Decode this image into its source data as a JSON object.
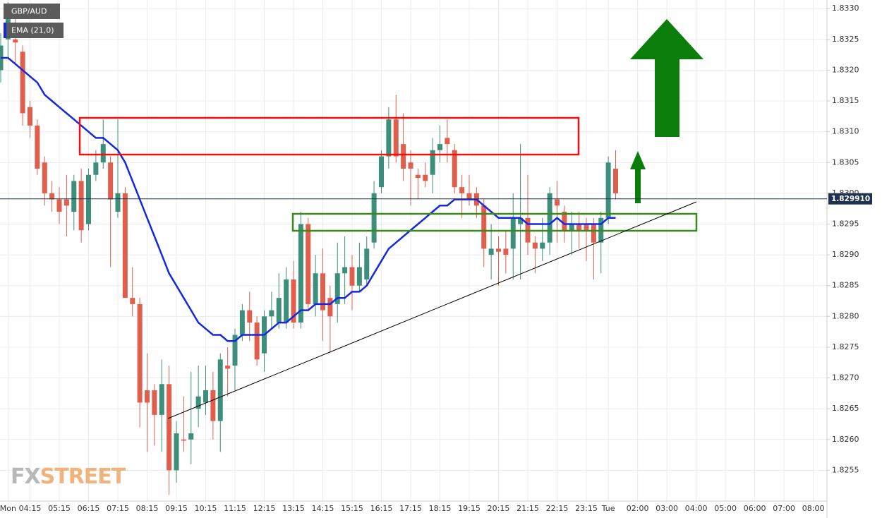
{
  "chart_data": {
    "type": "candlestick",
    "categories": [
      null,
      "Mon",
      null,
      null,
      "04:15",
      null,
      null,
      null,
      "05:15",
      null,
      null,
      null,
      "06:15",
      null,
      null,
      null,
      "07:15",
      null,
      null,
      null,
      "08:15",
      null,
      null,
      null,
      "09:15",
      null,
      null,
      null,
      "10:15",
      null,
      null,
      null,
      "11:15",
      null,
      null,
      null,
      "12:15",
      null,
      null,
      null,
      "13:15",
      null,
      null,
      null,
      "14:15",
      null,
      null,
      null,
      "15:15",
      null,
      null,
      null,
      "16:15",
      null,
      null,
      null,
      "17:15",
      null,
      null,
      null,
      "18:15",
      null,
      null,
      null,
      "19:15",
      null,
      null,
      null,
      "20:15",
      null,
      null,
      null,
      "21:15",
      null,
      null,
      null,
      "22:15",
      null,
      null,
      null,
      "23:15",
      null,
      null,
      "Tue",
      null,
      null,
      null,
      "02:00",
      null,
      null,
      null,
      "03:00",
      null,
      null,
      null,
      "04:00",
      null,
      null,
      null,
      "05:00",
      null,
      null,
      null,
      "06:00",
      null,
      null,
      null,
      "07:00",
      null,
      null,
      null,
      "08:00",
      null
    ],
    "series": [
      {
        "name": "GBP/AUD",
        "up_color": "#3d8f7c",
        "down_color": "#df5f4c",
        "open": [
          1.832,
          1.8325,
          1.8325,
          1.8323,
          1.8314,
          1.8311,
          1.8305,
          1.83,
          1.8299,
          1.8299,
          1.8297,
          1.8302,
          1.8295,
          1.8303,
          1.8305,
          1.8305,
          1.8297,
          1.83,
          1.8283,
          1.8282,
          1.8268,
          1.8268,
          1.8264,
          1.8269,
          1.8255,
          1.826,
          1.826,
          1.8265,
          1.8266,
          1.8268,
          1.8263,
          1.8272,
          1.8272,
          1.8277,
          1.8281,
          1.8279,
          1.8274,
          1.828,
          1.8279,
          1.8279,
          1.8286,
          1.8279,
          1.8295,
          1.8282,
          1.8287,
          1.8283,
          1.8282,
          1.8287,
          1.8288,
          1.8285,
          1.8286,
          1.8292,
          1.8301,
          1.8306,
          1.8312,
          1.8308,
          1.8305,
          1.8303,
          1.8303,
          1.8303,
          1.8307,
          1.8309,
          1.8307,
          1.8301,
          1.83,
          1.83,
          1.8298,
          1.829,
          1.8291,
          1.8291,
          1.8291,
          1.8295,
          1.8296,
          1.8292,
          1.8291,
          1.8292,
          1.8299,
          1.8297,
          1.8294,
          1.8295,
          1.8295,
          1.8295,
          1.8292,
          1.8296,
          1.8304,
          null,
          null,
          null,
          null,
          null,
          null,
          null,
          null,
          null,
          null,
          null,
          null,
          null,
          null,
          null,
          null,
          null,
          null,
          null,
          null,
          null,
          null,
          null,
          null,
          null,
          null,
          null,
          null
        ],
        "high": [
          1.8326,
          1.8331,
          1.8329,
          1.8324,
          1.8315,
          1.8312,
          1.8306,
          1.8302,
          1.8301,
          1.8303,
          1.8303,
          1.8304,
          1.8304,
          1.8307,
          1.8312,
          1.8306,
          1.8312,
          1.8301,
          1.8288,
          1.8283,
          1.8274,
          1.8269,
          1.8273,
          1.8272,
          1.8263,
          1.8267,
          1.8271,
          1.8272,
          1.8272,
          1.8271,
          1.8274,
          1.8275,
          1.8278,
          1.8282,
          1.8284,
          1.828,
          1.8281,
          1.8284,
          1.8287,
          1.8288,
          1.8289,
          1.8297,
          1.8296,
          1.829,
          1.8291,
          1.8285,
          1.8292,
          1.8293,
          1.829,
          1.8292,
          1.8293,
          1.8302,
          1.8307,
          1.8314,
          1.8316,
          1.8313,
          1.8307,
          1.8304,
          1.8305,
          1.8309,
          1.8311,
          1.8312,
          1.8308,
          1.8303,
          1.8303,
          1.8301,
          1.8299,
          1.8295,
          1.8293,
          1.8294,
          1.83,
          1.8308,
          1.8303,
          1.8293,
          1.8296,
          1.8301,
          1.8302,
          1.8298,
          1.8297,
          1.8297,
          1.8296,
          1.8296,
          1.8297,
          1.8306,
          1.8307,
          null,
          null,
          null,
          null,
          null,
          null,
          null,
          null,
          null,
          null,
          null,
          null,
          null,
          null,
          null,
          null,
          null,
          null,
          null,
          null,
          null,
          null,
          null,
          null,
          null,
          null,
          null,
          null
        ],
        "low": [
          1.8318,
          1.8322,
          1.8321,
          1.8311,
          1.8309,
          1.8303,
          1.8298,
          1.8297,
          1.8295,
          1.8293,
          1.8294,
          1.8292,
          1.8294,
          1.8302,
          1.8304,
          1.8288,
          1.8296,
          1.8283,
          1.828,
          1.8262,
          1.8258,
          1.8259,
          1.8258,
          1.8251,
          1.8253,
          1.8258,
          1.8256,
          1.8262,
          1.8264,
          1.826,
          1.8258,
          1.8267,
          1.8268,
          1.8276,
          1.8276,
          1.8272,
          1.8271,
          1.8278,
          1.8278,
          1.8278,
          1.8278,
          1.8278,
          1.8281,
          1.828,
          1.8276,
          1.8274,
          1.8279,
          1.8282,
          1.8281,
          1.8284,
          1.8285,
          1.8291,
          1.83,
          1.8304,
          1.8305,
          1.8302,
          1.8298,
          1.8299,
          1.8301,
          1.83,
          1.8305,
          1.8305,
          1.83,
          1.8296,
          1.8298,
          1.8296,
          1.8288,
          1.8286,
          1.8285,
          1.8287,
          1.8286,
          1.8286,
          1.829,
          1.8287,
          1.8289,
          1.829,
          1.8292,
          1.8292,
          1.829,
          1.8291,
          1.8289,
          1.8286,
          1.8287,
          1.8295,
          1.8299,
          null,
          null,
          null,
          null,
          null,
          null,
          null,
          null,
          null,
          null,
          null,
          null,
          null,
          null,
          null,
          null,
          null,
          null,
          null,
          null,
          null,
          null,
          null,
          null,
          null,
          null,
          null,
          null
        ],
        "close": [
          1.8324,
          1.8329,
          1.83245,
          1.8313,
          1.8311,
          1.8304,
          1.83,
          1.8299,
          1.8297,
          1.8298,
          1.8302,
          1.8294,
          1.8303,
          1.8305,
          1.8308,
          1.8299,
          1.83,
          1.8283,
          1.8282,
          1.8266,
          1.8266,
          1.8264,
          1.8269,
          1.8255,
          1.8261,
          1.82598,
          1.8261,
          1.8267,
          1.8268,
          1.8263,
          1.8273,
          1.82715,
          1.8277,
          1.8281,
          1.8279,
          1.8273,
          1.828,
          1.8281,
          1.8283,
          1.8286,
          1.8279,
          1.8295,
          1.8282,
          1.8287,
          1.8281,
          1.828,
          1.8287,
          1.8288,
          1.8285,
          1.8288,
          1.8291,
          1.83,
          1.8306,
          1.8312,
          1.8306,
          1.8304,
          1.8304,
          1.83025,
          1.8302,
          1.8307,
          1.8308,
          1.8308,
          1.8301,
          1.83,
          1.8299,
          1.8298,
          1.8291,
          1.8291,
          1.82905,
          1.829,
          1.8296,
          1.8296,
          1.8292,
          1.8291,
          1.8292,
          1.83,
          1.8298,
          1.8294,
          1.8295,
          1.8294,
          1.8294,
          1.8292,
          1.8296,
          1.8305,
          1.83,
          null,
          null,
          null,
          null,
          null,
          null,
          null,
          null,
          null,
          null,
          null,
          null,
          null,
          null,
          null,
          null,
          null,
          null,
          null,
          null,
          null,
          null,
          null,
          null,
          null,
          null,
          null,
          null
        ]
      },
      {
        "name": "EMA (21,0)",
        "color": "#1228e6",
        "values": [
          1.8322,
          1.8322,
          1.8321,
          1.832,
          1.8319,
          1.8318,
          1.8316,
          1.8315,
          1.8314,
          1.8313,
          1.8312,
          1.8311,
          1.831,
          1.8309,
          1.8309,
          1.8308,
          1.8307,
          1.8305,
          1.8302,
          1.8299,
          1.8296,
          1.8293,
          1.829,
          1.8287,
          1.8285,
          1.8283,
          1.8281,
          1.8279,
          1.8278,
          1.8277,
          1.8277,
          1.8276,
          1.8276,
          1.8277,
          1.8277,
          1.8277,
          1.8277,
          1.8278,
          1.8279,
          1.8279,
          1.828,
          1.8281,
          1.8281,
          1.8282,
          1.8282,
          1.8282,
          1.8283,
          1.8283,
          1.8284,
          1.8284,
          1.8285,
          1.8287,
          1.8289,
          1.8291,
          1.8292,
          1.8293,
          1.8294,
          1.8295,
          1.8296,
          1.8297,
          1.8298,
          1.8298,
          1.8299,
          1.8299,
          1.8299,
          1.8299,
          1.8298,
          1.8297,
          1.8296,
          1.8296,
          1.8296,
          1.8296,
          1.8295,
          1.8295,
          1.8295,
          1.8295,
          1.8296,
          1.8295,
          1.8295,
          1.8295,
          1.8295,
          1.8295,
          1.8295,
          1.8296,
          1.8296,
          null,
          null,
          null,
          null,
          null,
          null,
          null,
          null,
          null,
          null,
          null,
          null,
          null,
          null,
          null,
          null,
          null,
          null,
          null,
          null,
          null,
          null,
          null,
          null,
          null,
          null,
          null,
          null
        ]
      }
    ],
    "last_price": {
      "value": 1.82991,
      "label": "1.829910"
    },
    "ylim": [
      1.825,
      1.83314
    ],
    "yticks": [
      1.8255,
      {
        "value": 1.826,
        "label": "1.8260"
      },
      1.8265,
      {
        "value": 1.827,
        "label": "1.8270"
      },
      1.8275,
      {
        "value": 1.828,
        "label": "1.8280"
      },
      1.8285,
      {
        "value": 1.829,
        "label": "1.8290"
      },
      1.8295,
      {
        "value": 1.83,
        "label": "1.8300"
      },
      1.8305,
      {
        "value": 1.831,
        "label": "1.8310"
      },
      1.8315,
      {
        "value": 1.832,
        "label": "1.8320"
      },
      1.8325,
      {
        "value": 1.833,
        "label": "1.8330"
      }
    ],
    "grid": true,
    "watermark": [
      "FX",
      "STREET"
    ]
  }
}
